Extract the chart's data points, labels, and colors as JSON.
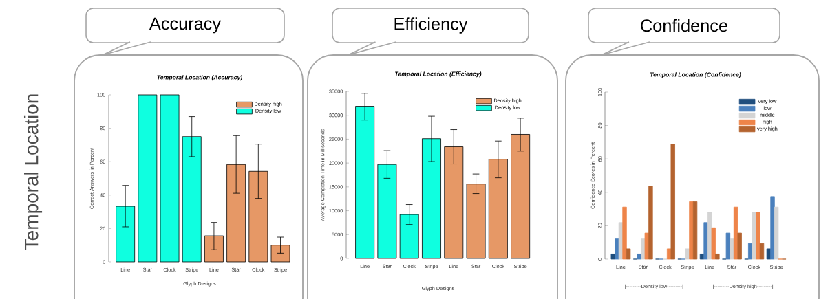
{
  "chart_data": [
    {
      "type": "bar",
      "title": "Temporal Location (Accuracy)",
      "xlabel": "Glyph Designs",
      "ylabel": "Correct Answers in Percent",
      "categories": [
        "Line",
        "Star",
        "Clock",
        "Stripe",
        "Line",
        "Star",
        "Clock",
        "Stripe"
      ],
      "series": [
        {
          "name": "Density high",
          "color": "#e69866",
          "values": [
            null,
            null,
            null,
            null,
            15.6,
            58.3,
            54.2,
            10
          ],
          "errors": [
            null,
            null,
            null,
            null,
            [
              7.3,
              23.6
            ],
            [
              41.1,
              75.6
            ],
            [
              38,
              70.5
            ],
            [
              5.2,
              14.8
            ]
          ]
        },
        {
          "name": "Density low",
          "color": "#0fffe0",
          "values": [
            33.3,
            100,
            100,
            75,
            null,
            null,
            null,
            null
          ],
          "errors": [
            [
              21,
              45.8
            ],
            null,
            null,
            [
              63,
              87
            ],
            null,
            null,
            null,
            null
          ]
        }
      ],
      "ylim": [
        0,
        100
      ],
      "yticks": [
        0,
        20,
        40,
        60,
        80,
        100
      ],
      "legend": "top right",
      "annotations": [
        "Accuracy",
        "Temporal Location"
      ]
    },
    {
      "type": "bar",
      "title": "Temporal Location (Efficiency)",
      "xlabel": "Glyph Designs",
      "ylabel": "Average Completion Time in Milliseconds",
      "categories": [
        "Line",
        "Star",
        "Clock",
        "Stripe",
        "Line",
        "Star",
        "Clock",
        "Stripe"
      ],
      "series": [
        {
          "name": "Density high",
          "color": "#e69866",
          "values": [
            null,
            null,
            null,
            null,
            23400,
            15600,
            20800,
            26000
          ],
          "errors": [
            null,
            null,
            null,
            null,
            [
              19800,
              27000
            ],
            [
              13600,
              17700
            ],
            [
              16900,
              24600
            ],
            [
              22500,
              29400
            ]
          ]
        },
        {
          "name": "Density low",
          "color": "#0fffe0",
          "values": [
            31900,
            19700,
            9200,
            25100,
            null,
            null,
            null,
            null
          ],
          "errors": [
            [
              29000,
              34600
            ],
            [
              16800,
              22600
            ],
            [
              7100,
              11300
            ],
            [
              20300,
              29800
            ],
            null,
            null,
            null,
            null
          ]
        }
      ],
      "ylim": [
        0,
        35000
      ],
      "yticks": [
        0,
        5000,
        10000,
        15000,
        20000,
        25000,
        30000,
        35000
      ],
      "legend": "top right",
      "annotations": [
        "Efficiency"
      ]
    },
    {
      "type": "bar",
      "title": "Temporal Location (Confidence)",
      "ylabel": "Confidence Scores in Percent",
      "categories": [
        "Line",
        "Star",
        "Clock",
        "Stripe",
        "Line",
        "Star",
        "Clock",
        "Stripe"
      ],
      "series": [
        {
          "name": "very low",
          "color": "#1f4e7d",
          "values": [
            3.1,
            0,
            0,
            0,
            3.1,
            0,
            0,
            6.2
          ]
        },
        {
          "name": "low",
          "color": "#4a80bd",
          "values": [
            12.5,
            3.1,
            0,
            0,
            21.9,
            15.6,
            9.4,
            37.5
          ]
        },
        {
          "name": "middle",
          "color": "#d4d4d4",
          "values": [
            21.9,
            12.5,
            0,
            6.2,
            28.1,
            12.5,
            28.1,
            31.2
          ]
        },
        {
          "name": "high",
          "color": "#ee8449",
          "values": [
            31.2,
            15.6,
            6.2,
            34.4,
            18.8,
            31.2,
            28.1,
            0
          ]
        },
        {
          "name": "very high",
          "color": "#b4632f",
          "values": [
            6.2,
            43.8,
            68.8,
            34.4,
            3.1,
            15.6,
            9.4,
            0
          ]
        }
      ],
      "ylim": [
        0,
        100
      ],
      "yticks": [
        0,
        20,
        40,
        60,
        80,
        100
      ],
      "legend": "top right",
      "annotations": [
        "Confidence",
        "|---------Density low---------|",
        "|---------Density high---------|"
      ]
    }
  ]
}
